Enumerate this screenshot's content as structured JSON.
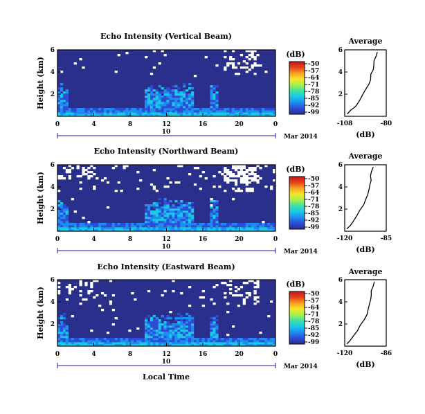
{
  "figure": {
    "common_xlabel": "Local Time",
    "colorbar_unit": "(dB)",
    "colorbar_ticks": [
      "-50",
      "-57",
      "-64",
      "-71",
      "-78",
      "-85",
      "-92",
      "-99"
    ],
    "colormap": [
      "#2a2f8c",
      "#2e4bd6",
      "#1e8cf0",
      "#19c9e6",
      "#3fe0a8",
      "#a6f04a",
      "#f5e62a",
      "#f7a11e",
      "#e8401a",
      "#c01818"
    ],
    "background_color": "#2a2f8c",
    "missing_color": "#ffffff"
  },
  "chart_data": [
    {
      "type": "heatmap",
      "title": "Echo Intensity (Vertical Beam)",
      "ylabel": "Height (km)",
      "yticks": [
        "6",
        "4",
        "2"
      ],
      "ylim": [
        0,
        6
      ],
      "xticks": [
        "0",
        "4",
        "8",
        "12",
        "16",
        "20",
        "0"
      ],
      "xlim": [
        0,
        24
      ],
      "date_day": "10",
      "date_label": "Mar 2014",
      "clim": [
        -99,
        -50
      ],
      "profile": {
        "title": "Average",
        "xlabel": "(dB)",
        "xticks": [
          "-108",
          "-80"
        ],
        "xlim": [
          -108,
          -80
        ],
        "yticks": [
          "6",
          "4",
          "2"
        ],
        "points": [
          [
            -106,
            0.2
          ],
          [
            -104,
            0.5
          ],
          [
            -101,
            0.9
          ],
          [
            -98,
            1.4
          ],
          [
            -96,
            1.9
          ],
          [
            -94,
            2.4
          ],
          [
            -92,
            2.9
          ],
          [
            -91,
            3.3
          ],
          [
            -90,
            3.8
          ],
          [
            -89,
            4.2
          ],
          [
            -88,
            4.6
          ],
          [
            -88,
            5.0
          ],
          [
            -87,
            5.4
          ],
          [
            -86,
            5.8
          ]
        ]
      }
    },
    {
      "type": "heatmap",
      "title": "Echo Intensity (Northward Beam)",
      "ylabel": "Height (km)",
      "yticks": [
        "6",
        "4",
        "2"
      ],
      "ylim": [
        0,
        6
      ],
      "xticks": [
        "0",
        "4",
        "8",
        "12",
        "16",
        "20",
        "0"
      ],
      "xlim": [
        0,
        24
      ],
      "date_day": "10",
      "date_label": "Mar 2014",
      "clim": [
        -99,
        -50
      ],
      "profile": {
        "title": "Average",
        "xlabel": "(dB)",
        "xticks": [
          "-120",
          "-85"
        ],
        "xlim": [
          -120,
          -85
        ],
        "yticks": [
          "6",
          "4",
          "2"
        ],
        "points": [
          [
            -118,
            0.2
          ],
          [
            -116,
            0.5
          ],
          [
            -113,
            0.9
          ],
          [
            -110,
            1.4
          ],
          [
            -107,
            1.9
          ],
          [
            -104,
            2.4
          ],
          [
            -102,
            2.9
          ],
          [
            -101,
            3.3
          ],
          [
            -100,
            3.8
          ],
          [
            -99,
            4.2
          ],
          [
            -98,
            4.6
          ],
          [
            -98,
            5.0
          ],
          [
            -97,
            5.4
          ],
          [
            -96,
            5.8
          ]
        ]
      }
    },
    {
      "type": "heatmap",
      "title": "Echo Intensity (Eastward Beam)",
      "ylabel": "Height (km)",
      "yticks": [
        "6",
        "4",
        "2"
      ],
      "ylim": [
        0,
        6
      ],
      "xticks": [
        "0",
        "4",
        "8",
        "12",
        "16",
        "20",
        "0"
      ],
      "xlim": [
        0,
        24
      ],
      "date_day": "10",
      "date_label": "Mar 2014",
      "clim": [
        -99,
        -50
      ],
      "profile": {
        "title": "Average",
        "xlabel": "(dB)",
        "xticks": [
          "-120",
          "-86"
        ],
        "xlim": [
          -120,
          -86
        ],
        "yticks": [
          "6",
          "4",
          "2"
        ],
        "points": [
          [
            -118,
            0.2
          ],
          [
            -116,
            0.5
          ],
          [
            -113,
            0.9
          ],
          [
            -110,
            1.4
          ],
          [
            -107,
            1.9
          ],
          [
            -104,
            2.4
          ],
          [
            -102,
            2.9
          ],
          [
            -101,
            3.3
          ],
          [
            -100,
            3.8
          ],
          [
            -99,
            4.2
          ],
          [
            -98,
            4.6
          ],
          [
            -98,
            5.0
          ],
          [
            -97,
            5.4
          ],
          [
            -96,
            5.8
          ]
        ]
      }
    }
  ]
}
